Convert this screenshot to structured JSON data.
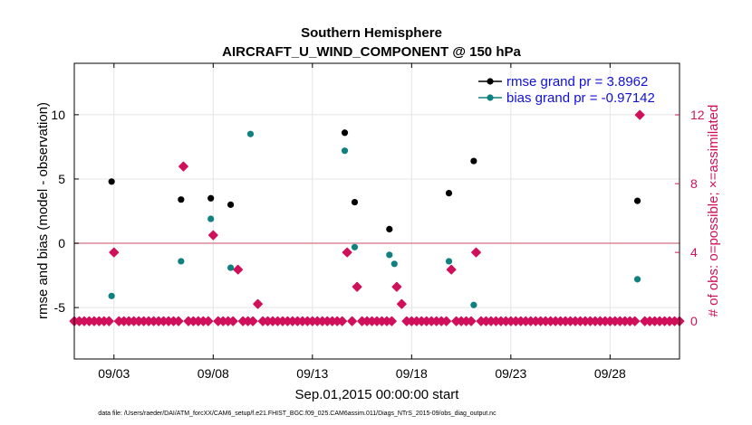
{
  "chart_data": {
    "type": "scatter",
    "title": [
      "Southern Hemisphere",
      "AIRCRAFT_U_WIND_COMPONENT @ 150 hPa"
    ],
    "xlabel": "Sep.01,2015 00:00:00 start",
    "ylabel": "rmse and bias (model - observation)",
    "y2label": "# of obs: o=possible; ×=assimilated",
    "footer": "data file: /Users/raeder/DAI/ATM_forcXX/CAM6_setup/f.e21.FHIST_BGC.f09_025.CAM6assim.011/Diags_NTrS_2015-09/obs_diag_output.nc",
    "xlim": [
      1.0,
      31.5
    ],
    "ylim": [
      -9,
      14
    ],
    "y2lim": [
      -2.2,
      15.0
    ],
    "x_ticks": [
      3,
      8,
      13,
      18,
      23,
      28
    ],
    "x_tick_labels": [
      "09/03",
      "09/08",
      "09/13",
      "09/18",
      "09/23",
      "09/28"
    ],
    "y_ticks": [
      -5,
      0,
      5,
      10
    ],
    "y_tick_labels": [
      "-5",
      "0",
      "5",
      "10"
    ],
    "y2_ticks": [
      0,
      4,
      8,
      12
    ],
    "y2_tick_labels": [
      "0",
      "4",
      "8",
      "12"
    ],
    "grid": true,
    "legend_position": "top-right",
    "zero_line_color": "#d98a98",
    "series": [
      {
        "name": "rmse grand pr = 3.8962",
        "color": "#000000",
        "axis": "left",
        "x": [
          2.88,
          6.38,
          7.88,
          8.88,
          14.63,
          15.13,
          16.88,
          19.88,
          21.13,
          29.38
        ],
        "y": [
          4.8,
          3.4,
          3.5,
          3.0,
          8.6,
          3.2,
          1.1,
          3.9,
          6.4,
          3.3
        ]
      },
      {
        "name": "bias grand pr = -0.97142",
        "color": "#108080",
        "axis": "left",
        "x": [
          2.88,
          6.38,
          7.88,
          8.88,
          9.88,
          14.63,
          15.13,
          16.88,
          17.13,
          19.88,
          21.13,
          29.38
        ],
        "y": [
          -4.1,
          -1.4,
          1.9,
          -1.9,
          8.5,
          7.2,
          -0.3,
          -0.9,
          -1.6,
          -1.4,
          -4.8,
          -2.8
        ]
      },
      {
        "name": "obs",
        "color": "#d0105a",
        "axis": "right",
        "x": [
          1.0,
          1.25,
          1.5,
          1.75,
          2.0,
          2.25,
          2.5,
          2.75,
          3.0,
          3.25,
          3.5,
          3.75,
          4.0,
          4.25,
          4.5,
          4.75,
          5.0,
          5.25,
          5.5,
          5.75,
          6.0,
          6.25,
          6.5,
          6.75,
          7.0,
          7.25,
          7.5,
          7.75,
          8.0,
          8.25,
          8.5,
          8.75,
          9.0,
          9.25,
          9.5,
          9.75,
          10.0,
          10.25,
          10.5,
          10.75,
          11.0,
          11.25,
          11.5,
          11.75,
          12.0,
          12.25,
          12.5,
          12.75,
          13.0,
          13.25,
          13.5,
          13.75,
          14.0,
          14.25,
          14.5,
          14.75,
          15.0,
          15.25,
          15.5,
          15.75,
          16.0,
          16.25,
          16.5,
          16.75,
          17.0,
          17.25,
          17.5,
          17.75,
          18.0,
          18.25,
          18.5,
          18.75,
          19.0,
          19.25,
          19.5,
          19.75,
          20.0,
          20.25,
          20.5,
          20.75,
          21.0,
          21.25,
          21.5,
          21.75,
          22.0,
          22.25,
          22.5,
          22.75,
          23.0,
          23.25,
          23.5,
          23.75,
          24.0,
          24.25,
          24.5,
          24.75,
          25.0,
          25.25,
          25.5,
          25.75,
          26.0,
          26.25,
          26.5,
          26.75,
          27.0,
          27.25,
          27.5,
          27.75,
          28.0,
          28.25,
          28.5,
          28.75,
          29.0,
          29.25,
          29.5,
          29.75,
          30.0,
          30.25,
          30.5,
          30.75,
          31.0,
          31.25,
          31.5
        ],
        "y": [
          0,
          0,
          0,
          0,
          0,
          0,
          0,
          0,
          4,
          0,
          0,
          0,
          0,
          0,
          0,
          0,
          0,
          0,
          0,
          0,
          0,
          0,
          9,
          0,
          0,
          0,
          0,
          0,
          5,
          0,
          0,
          0,
          0,
          3,
          0,
          0,
          0,
          1,
          0,
          0,
          0,
          0,
          0,
          0,
          0,
          0,
          0,
          0,
          0,
          0,
          0,
          0,
          0,
          0,
          0,
          4,
          0,
          2,
          0,
          0,
          0,
          0,
          0,
          0,
          0,
          2,
          1,
          0,
          0,
          0,
          0,
          0,
          0,
          0,
          0,
          0,
          3,
          0,
          0,
          0,
          0,
          4,
          0,
          0,
          0,
          0,
          0,
          0,
          0,
          0,
          0,
          0,
          0,
          0,
          0,
          0,
          0,
          0,
          0,
          0,
          0,
          0,
          0,
          0,
          0,
          0,
          0,
          0,
          0,
          0,
          0,
          0,
          0,
          0,
          12,
          0,
          0,
          0,
          0,
          0,
          0,
          0,
          0
        ]
      }
    ]
  }
}
